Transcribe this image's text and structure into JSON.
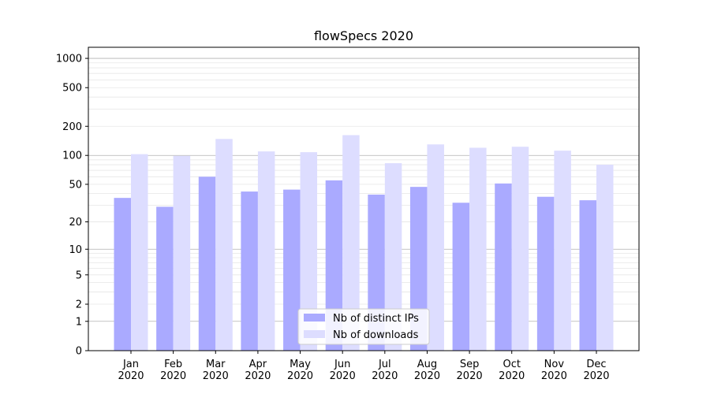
{
  "chart_data": {
    "type": "bar",
    "title": "flowSpecs 2020",
    "xlabel": "",
    "ylabel": "",
    "yscale": "symlog",
    "ylim": [
      0,
      1300
    ],
    "yticks": [
      0,
      1,
      2,
      5,
      10,
      20,
      50,
      100,
      200,
      500,
      1000
    ],
    "ytick_labels": [
      "0",
      "1",
      "2",
      "5",
      "10",
      "20",
      "50",
      "100",
      "200",
      "500",
      "1000"
    ],
    "grid": true,
    "legend_position": "bottom-center",
    "categories": [
      "Jan\n2020",
      "Feb\n2020",
      "Mar\n2020",
      "Apr\n2020",
      "May\n2020",
      "Jun\n2020",
      "Jul\n2020",
      "Aug\n2020",
      "Sep\n2020",
      "Oct\n2020",
      "Nov\n2020",
      "Dec\n2020"
    ],
    "category_lines": [
      [
        "Jan",
        "2020"
      ],
      [
        "Feb",
        "2020"
      ],
      [
        "Mar",
        "2020"
      ],
      [
        "Apr",
        "2020"
      ],
      [
        "May",
        "2020"
      ],
      [
        "Jun",
        "2020"
      ],
      [
        "Jul",
        "2020"
      ],
      [
        "Aug",
        "2020"
      ],
      [
        "Sep",
        "2020"
      ],
      [
        "Oct",
        "2020"
      ],
      [
        "Nov",
        "2020"
      ],
      [
        "Dec",
        "2020"
      ]
    ],
    "series": [
      {
        "name": "Nb of distinct IPs",
        "color": "#aaaaff",
        "values": [
          36,
          29,
          60,
          42,
          44,
          55,
          39,
          47,
          32,
          51,
          37,
          34
        ]
      },
      {
        "name": "Nb of downloads",
        "color": "#ddddff",
        "values": [
          103,
          99,
          148,
          110,
          108,
          162,
          83,
          130,
          120,
          123,
          112,
          80
        ]
      }
    ]
  }
}
